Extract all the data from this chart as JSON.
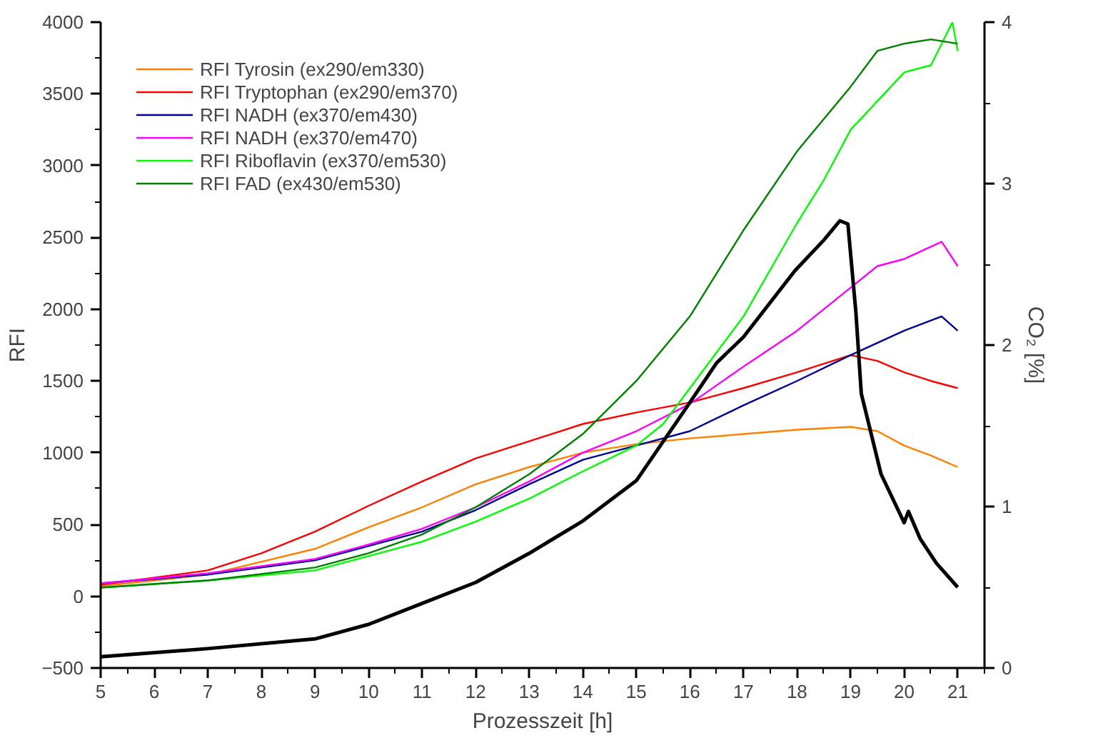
{
  "chart_data": {
    "type": "line",
    "xlabel": "Prozesszeit [h]",
    "ylabel": "RFI",
    "y2label": "CO₂ [%]",
    "xlim": [
      5,
      21.5
    ],
    "xticks": [
      5,
      6,
      7,
      8,
      9,
      10,
      11,
      12,
      13,
      14,
      15,
      16,
      17,
      18,
      19,
      20,
      21
    ],
    "ylim": [
      -500,
      4000
    ],
    "yticks": [
      -500,
      0,
      500,
      1000,
      1500,
      2000,
      2500,
      3000,
      3500,
      4000
    ],
    "y2lim": [
      0,
      4
    ],
    "y2ticks": [
      0,
      1,
      2,
      3,
      4
    ],
    "grid": false,
    "legend": "top left",
    "marker": "none",
    "line_style": "solid",
    "series": [
      {
        "name": "RFI Tyrosin (ex290/em330)",
        "color": "#ff8000",
        "x": [
          5,
          7,
          9,
          10,
          11,
          12,
          13,
          14,
          15,
          16,
          17,
          18,
          19,
          19.5,
          20,
          20.5,
          21
        ],
        "values": [
          70,
          150,
          330,
          480,
          620,
          780,
          900,
          1000,
          1060,
          1100,
          1130,
          1160,
          1180,
          1150,
          1050,
          980,
          900
        ]
      },
      {
        "name": "RFI Tryptophan (ex290/em370)",
        "color": "#ff0000",
        "x": [
          5,
          7,
          8,
          9,
          10,
          11,
          12,
          13,
          14,
          15,
          16,
          17,
          18,
          19,
          19.5,
          20,
          20.5,
          21
        ],
        "values": [
          80,
          180,
          300,
          450,
          630,
          800,
          960,
          1080,
          1200,
          1280,
          1350,
          1450,
          1560,
          1680,
          1640,
          1560,
          1500,
          1450
        ]
      },
      {
        "name": "RFI NADH (ex370/em430)",
        "color": "#000099",
        "x": [
          5,
          7,
          9,
          10,
          11,
          12,
          13,
          14,
          15,
          16,
          17,
          18,
          19,
          20,
          20.7,
          21
        ],
        "values": [
          90,
          150,
          250,
          350,
          450,
          600,
          780,
          950,
          1050,
          1150,
          1330,
          1500,
          1680,
          1850,
          1950,
          1850
        ]
      },
      {
        "name": "RFI NADH (ex370/em470)",
        "color": "#ff00ff",
        "x": [
          5,
          7,
          9,
          10,
          11,
          12,
          13,
          14,
          15,
          16,
          17,
          18,
          19,
          19.5,
          20,
          20.7,
          21
        ],
        "values": [
          90,
          160,
          260,
          360,
          470,
          620,
          800,
          1000,
          1150,
          1340,
          1600,
          1850,
          2150,
          2300,
          2350,
          2470,
          2300
        ]
      },
      {
        "name": "RFI Riboflavin (ex370/em530)",
        "color": "#00ff00",
        "x": [
          5,
          7,
          9,
          10,
          11,
          12,
          13,
          14,
          15,
          15.5,
          16,
          17,
          18,
          18.5,
          19,
          20,
          20.5,
          20.9,
          21
        ],
        "values": [
          60,
          110,
          180,
          280,
          380,
          520,
          680,
          870,
          1050,
          1200,
          1450,
          1950,
          2600,
          2900,
          3250,
          3650,
          3700,
          4000,
          3800
        ]
      },
      {
        "name": "RFI FAD (ex430/em530)",
        "color": "#008000",
        "x": [
          5,
          7,
          9,
          10,
          11,
          12,
          13,
          14,
          15,
          16,
          17,
          18,
          19,
          19.5,
          20,
          20.5,
          21
        ],
        "values": [
          60,
          110,
          200,
          300,
          430,
          620,
          850,
          1130,
          1500,
          1950,
          2550,
          3100,
          3550,
          3800,
          3850,
          3880,
          3850
        ]
      },
      {
        "axis": "y2",
        "color": "#000000",
        "x": [
          5,
          7,
          9,
          10,
          11,
          12,
          13,
          14,
          15,
          15.93,
          16.5,
          17,
          17.96,
          18.5,
          18.8,
          18.95,
          19.1,
          19.2,
          19.57,
          20,
          20.08,
          20.3,
          20.6,
          21
        ],
        "values": [
          0.07,
          0.12,
          0.18,
          0.27,
          0.4,
          0.53,
          0.71,
          0.91,
          1.16,
          1.61,
          1.89,
          2.05,
          2.46,
          2.65,
          2.77,
          2.75,
          2.2,
          1.7,
          1.2,
          0.9,
          0.97,
          0.8,
          0.65,
          0.5
        ]
      }
    ]
  }
}
